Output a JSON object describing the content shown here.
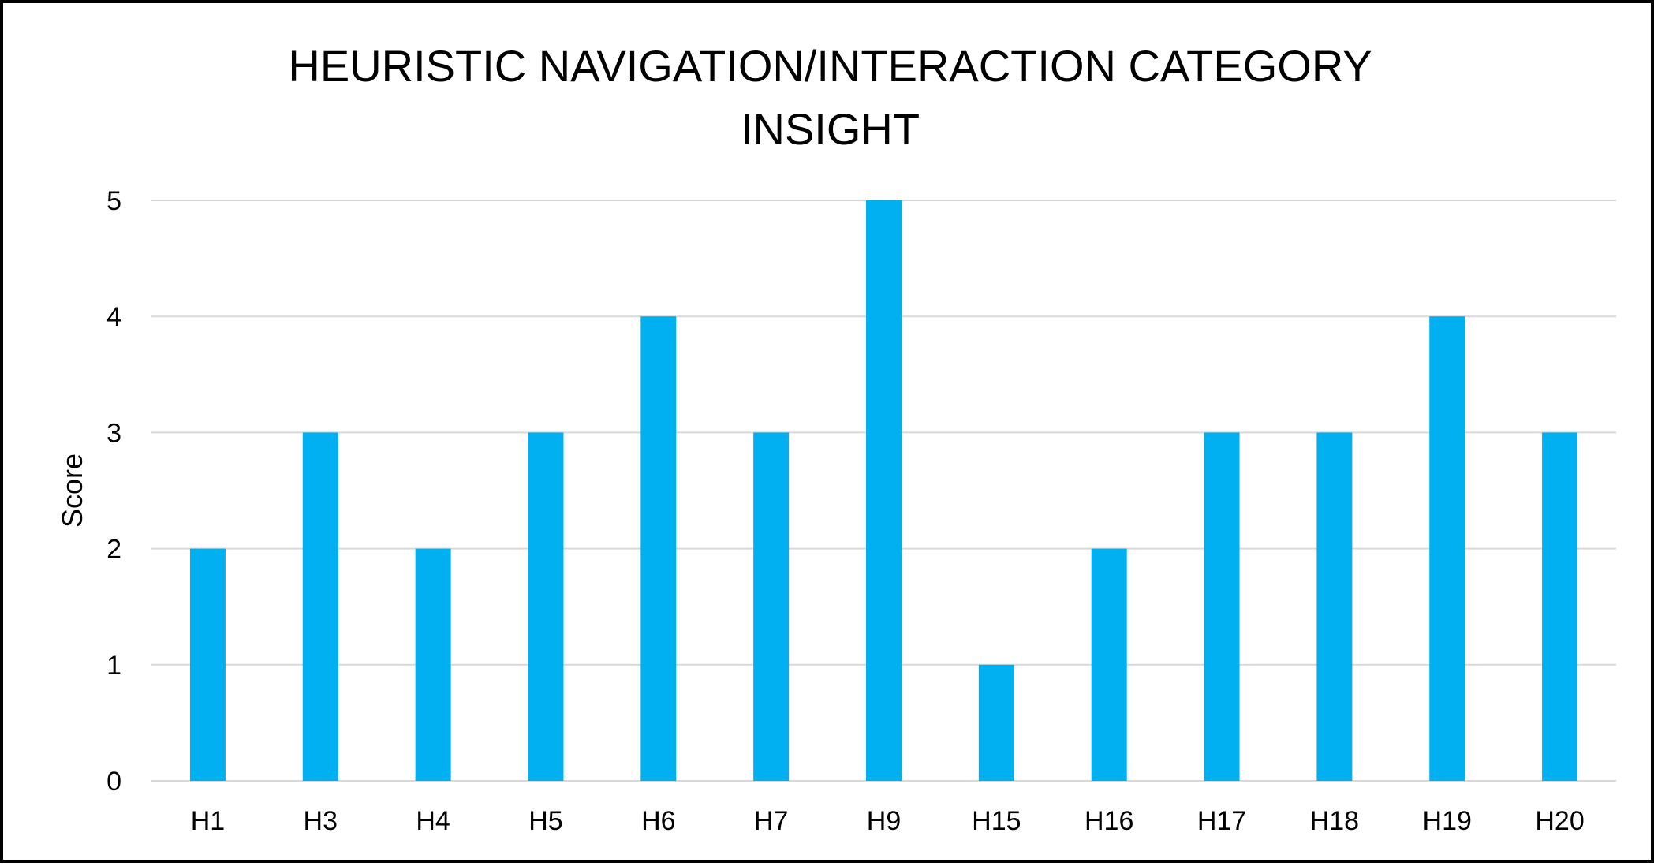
{
  "chart_data": {
    "type": "bar",
    "title_lines": [
      "HEURISTIC NAVIGATION/INTERACTION CATEGORY",
      "INSIGHT"
    ],
    "xlabel": "",
    "ylabel": "Score",
    "categories": [
      "H1",
      "H3",
      "H4",
      "H5",
      "H6",
      "H7",
      "H9",
      "H15",
      "H16",
      "H17",
      "H18",
      "H19",
      "H20"
    ],
    "values": [
      2,
      3,
      2,
      3,
      4,
      3,
      5,
      1,
      2,
      3,
      3,
      4,
      3
    ],
    "ylim": [
      0,
      5
    ],
    "yticks": [
      "0",
      "1",
      "2",
      "3",
      "4",
      "5"
    ],
    "grid": true,
    "legend": "none",
    "bar_color": "#00B0F0",
    "grid_color": "#D9D9D9"
  }
}
